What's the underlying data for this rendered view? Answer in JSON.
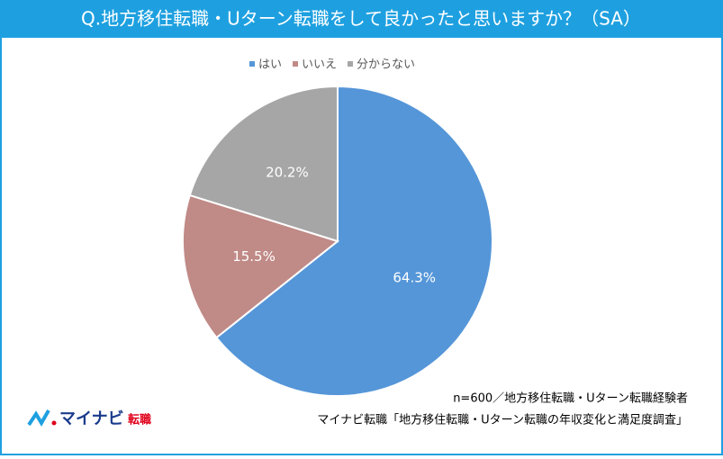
{
  "chart_data": {
    "type": "pie",
    "title": "Q.地方移住転職・Uターン転職をして良かったと思いますか？（SA）",
    "categories": [
      "はい",
      "いいえ",
      "分からない"
    ],
    "values": [
      64.3,
      15.5,
      20.2
    ],
    "value_labels": [
      "64.3%",
      "15.5%",
      "20.2%"
    ],
    "colors": [
      "#5596d8",
      "#c08a87",
      "#a6a6a6"
    ],
    "legend": "top",
    "notes": [
      "n=600／地方移住転職・Uターン転職経験者",
      "マイナビ転職「地方移住転職・Uターン転職の年収変化と満足度調査」"
    ],
    "logo": {
      "name": "マイナビ",
      "suffix": "転職"
    }
  }
}
